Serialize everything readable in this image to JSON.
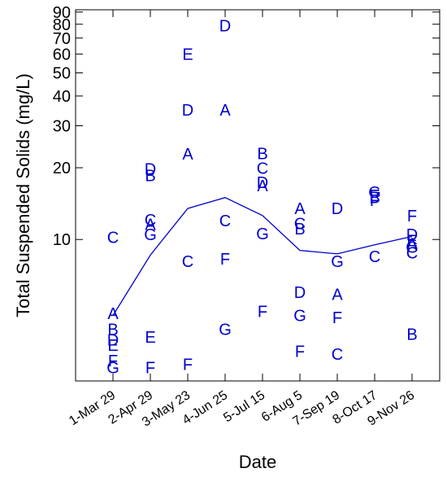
{
  "chart_data": {
    "type": "scatter",
    "title": "",
    "xlabel": "Date",
    "ylabel": "Total Suspended Solids (mg/L)",
    "y_scale": "log",
    "ylim": [
      2.55,
      92
    ],
    "yticks": [
      10,
      20,
      30,
      40,
      50,
      60,
      70,
      80,
      90
    ],
    "ytick_labels": [
      "10",
      "20",
      "30",
      "40",
      "50",
      "60",
      "70",
      "80",
      "90"
    ],
    "categories": [
      "1-Mar 29",
      "2-Apr 29",
      "3-May 23",
      "4-Jun 25",
      "5-Jul 15",
      "6-Aug 5",
      "7-Sep 19",
      "8-Oct 17",
      "9-Nov 26"
    ],
    "grid": false,
    "marker_color": "#0000cc",
    "points": [
      {
        "category": "1-Mar 29",
        "label": "C",
        "value": 10.2
      },
      {
        "category": "1-Mar 29",
        "label": "A",
        "value": 4.9
      },
      {
        "category": "1-Mar 29",
        "label": "B",
        "value": 4.2
      },
      {
        "category": "1-Mar 29",
        "label": "D",
        "value": 3.8
      },
      {
        "category": "1-Mar 29",
        "label": "E",
        "value": 3.6
      },
      {
        "category": "1-Mar 29",
        "label": "F",
        "value": 3.1
      },
      {
        "category": "1-Mar 29",
        "label": "G",
        "value": 2.9
      },
      {
        "category": "2-Apr 29",
        "label": "D",
        "value": 19.8
      },
      {
        "category": "2-Apr 29",
        "label": "B",
        "value": 18.6
      },
      {
        "category": "2-Apr 29",
        "label": "C",
        "value": 12.1
      },
      {
        "category": "2-Apr 29",
        "label": "A",
        "value": 11.6
      },
      {
        "category": "2-Apr 29",
        "label": "G",
        "value": 10.5
      },
      {
        "category": "2-Apr 29",
        "label": "E",
        "value": 3.9
      },
      {
        "category": "2-Apr 29",
        "label": "F",
        "value": 2.9
      },
      {
        "category": "3-May 23",
        "label": "E",
        "value": 60.0
      },
      {
        "category": "3-May 23",
        "label": "D",
        "value": 35.0
      },
      {
        "category": "3-May 23",
        "label": "A",
        "value": 22.9
      },
      {
        "category": "3-May 23",
        "label": "C",
        "value": 8.1
      },
      {
        "category": "3-May 23",
        "label": "F",
        "value": 3.0
      },
      {
        "category": "4-Jun 25",
        "label": "D",
        "value": 79.0
      },
      {
        "category": "4-Jun 25",
        "label": "A",
        "value": 35.0
      },
      {
        "category": "4-Jun 25",
        "label": "C",
        "value": 12.0
      },
      {
        "category": "4-Jun 25",
        "label": "F",
        "value": 8.3
      },
      {
        "category": "4-Jun 25",
        "label": "G",
        "value": 4.2
      },
      {
        "category": "5-Jul 15",
        "label": "B",
        "value": 23.0
      },
      {
        "category": "5-Jul 15",
        "label": "C",
        "value": 19.9
      },
      {
        "category": "5-Jul 15",
        "label": "D",
        "value": 17.4
      },
      {
        "category": "5-Jul 15",
        "label": "A",
        "value": 16.8
      },
      {
        "category": "5-Jul 15",
        "label": "G",
        "value": 10.6
      },
      {
        "category": "5-Jul 15",
        "label": "F",
        "value": 5.0
      },
      {
        "category": "6-Aug 5",
        "label": "A",
        "value": 13.5
      },
      {
        "category": "6-Aug 5",
        "label": "C",
        "value": 11.7
      },
      {
        "category": "6-Aug 5",
        "label": "B",
        "value": 11.1
      },
      {
        "category": "6-Aug 5",
        "label": "D",
        "value": 6.0
      },
      {
        "category": "6-Aug 5",
        "label": "G",
        "value": 4.8
      },
      {
        "category": "6-Aug 5",
        "label": "F",
        "value": 3.4
      },
      {
        "category": "7-Sep 19",
        "label": "D",
        "value": 13.5
      },
      {
        "category": "7-Sep 19",
        "label": "G",
        "value": 8.1
      },
      {
        "category": "7-Sep 19",
        "label": "A",
        "value": 5.9
      },
      {
        "category": "7-Sep 19",
        "label": "F",
        "value": 4.7
      },
      {
        "category": "7-Sep 19",
        "label": "C",
        "value": 3.3
      },
      {
        "category": "8-Oct 17",
        "label": "G",
        "value": 15.8
      },
      {
        "category": "8-Oct 17",
        "label": "E",
        "value": 15.3
      },
      {
        "category": "8-Oct 17",
        "label": "B",
        "value": 15.0
      },
      {
        "category": "8-Oct 17",
        "label": "F",
        "value": 14.6
      },
      {
        "category": "8-Oct 17",
        "label": "C",
        "value": 8.5
      },
      {
        "category": "9-Nov 26",
        "label": "F",
        "value": 12.6
      },
      {
        "category": "9-Nov 26",
        "label": "D",
        "value": 10.5
      },
      {
        "category": "9-Nov 26",
        "label": "E",
        "value": 9.9
      },
      {
        "category": "9-Nov 26",
        "label": "A",
        "value": 9.6
      },
      {
        "category": "9-Nov 26",
        "label": "G",
        "value": 9.3
      },
      {
        "category": "9-Nov 26",
        "label": "C",
        "value": 8.8
      },
      {
        "category": "9-Nov 26",
        "label": "B",
        "value": 4.0
      }
    ],
    "trend_line": {
      "values": [
        4.8,
        8.6,
        13.5,
        15.0,
        12.6,
        9.0,
        8.7,
        9.5,
        10.3
      ]
    }
  }
}
